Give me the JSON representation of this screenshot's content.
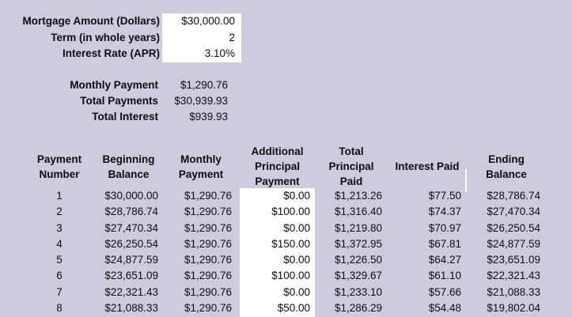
{
  "theme": {
    "background": "#CFCBDD",
    "input_cell_background": "#FFFFFF",
    "text_color": "#0D0D0D"
  },
  "inputs": {
    "rows": [
      {
        "label": "Mortgage Amount (Dollars)",
        "value": "$30,000.00"
      },
      {
        "label": "Term (in whole years)",
        "value": "2"
      },
      {
        "label": "Interest Rate (APR)",
        "value": "3.10%"
      }
    ]
  },
  "summary": {
    "rows": [
      {
        "label": "Monthly Payment",
        "value": "$1,290.76"
      },
      {
        "label": "Total Payments",
        "value": "$30,939.93"
      },
      {
        "label": "Total Interest",
        "value": "$939.93"
      }
    ]
  },
  "table": {
    "headers": [
      "Payment\nNumber",
      "Beginning\nBalance",
      "Monthly\nPayment",
      "Additional\nPrincipal\nPayment",
      "Total\nPrincipal\nPaid",
      "Interest Paid",
      "Ending\nBalance"
    ],
    "rows": [
      [
        "1",
        "$30,000.00",
        "$1,290.76",
        "$0.00",
        "$1,213.26",
        "$77.50",
        "$28,786.74"
      ],
      [
        "2",
        "$28,786.74",
        "$1,290.76",
        "$100.00",
        "$1,316.40",
        "$74.37",
        "$27,470.34"
      ],
      [
        "3",
        "$27,470.34",
        "$1,290.76",
        "$0.00",
        "$1,219.80",
        "$70.97",
        "$26,250.54"
      ],
      [
        "4",
        "$26,250.54",
        "$1,290.76",
        "$150.00",
        "$1,372.95",
        "$67.81",
        "$24,877.59"
      ],
      [
        "5",
        "$24,877.59",
        "$1,290.76",
        "$0.00",
        "$1,226.50",
        "$64.27",
        "$23,651.09"
      ],
      [
        "6",
        "$23,651.09",
        "$1,290.76",
        "$100.00",
        "$1,329.67",
        "$61.10",
        "$22,321.43"
      ],
      [
        "7",
        "$22,321.43",
        "$1,290.76",
        "$0.00",
        "$1,233.10",
        "$57.66",
        "$21,088.33"
      ],
      [
        "8",
        "$21,088.33",
        "$1,290.76",
        "$50.00",
        "$1,286.29",
        "$54.48",
        "$19,802.04"
      ]
    ]
  }
}
